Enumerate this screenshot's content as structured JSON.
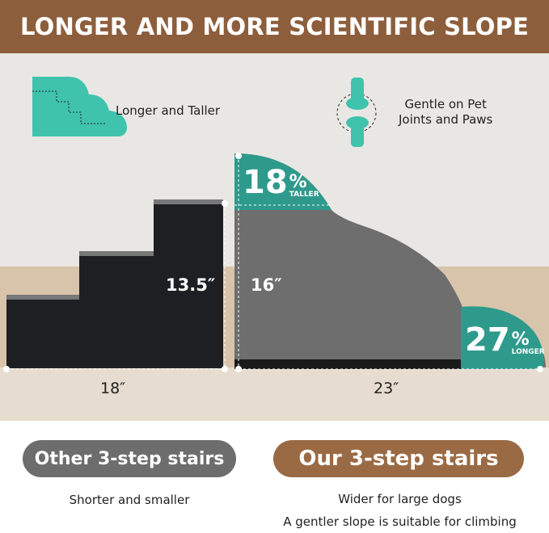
{
  "banner": {
    "title": "LONGER AND MORE SCIENTIFIC SLOPE"
  },
  "features": [
    {
      "icon": "stair-outline-icon",
      "label": "Longer and Taller"
    },
    {
      "icon": "joint-bone-icon",
      "label_line1": "Gentle on Pet",
      "label_line2": "Joints and Paws"
    }
  ],
  "other_stairs": {
    "height": "13.5″",
    "length": "18″"
  },
  "our_stairs": {
    "height": "16″",
    "length": "23″",
    "taller_pct": "18",
    "taller_label": "TALLER",
    "longer_pct": "27",
    "longer_label": "LONGER",
    "pct_sign": "%"
  },
  "compare": {
    "left": {
      "title": "Other 3-step stairs",
      "caption": "Shorter and smaller"
    },
    "right": {
      "title": "Our 3-step stairs",
      "caption_line1": "Wider for large dogs",
      "caption_line2": "A gentler slope is suitable for climbing"
    }
  },
  "colors": {
    "brown": "#8d5e3c",
    "teal": "#3fbfaa",
    "gray_pill": "#6d6d6d"
  }
}
